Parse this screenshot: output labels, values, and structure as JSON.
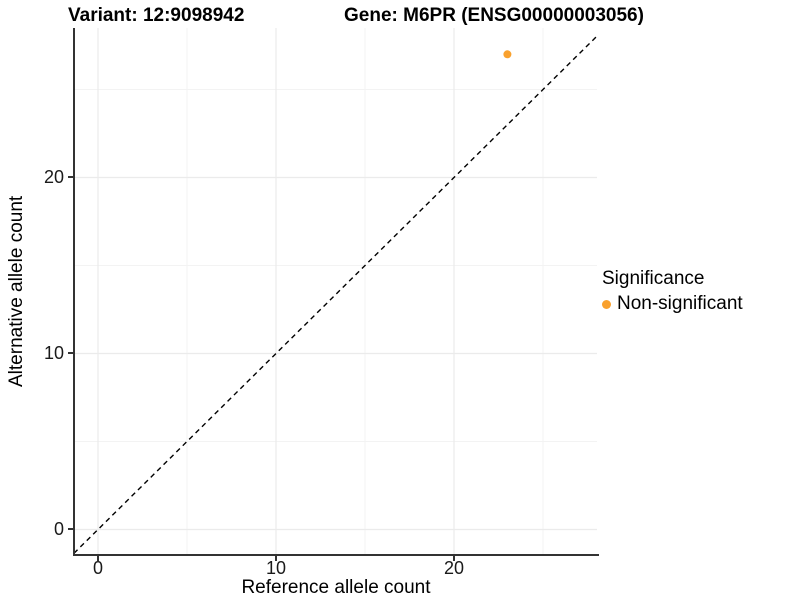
{
  "titles": {
    "variant": "Variant: 12:9098942",
    "gene": "Gene: M6PR (ENSG00000003056)"
  },
  "axes": {
    "x": {
      "label": "Reference allele count",
      "tick_labels": [
        "0",
        "10",
        "20"
      ]
    },
    "y": {
      "label": "Alternative allele count",
      "tick_labels": [
        "0",
        "10",
        "20"
      ]
    }
  },
  "legend": {
    "title": "Significance",
    "items": [
      {
        "label": "Non-significant",
        "color": "#F9A12E",
        "marker": "circle"
      }
    ]
  },
  "colors": {
    "point": "#F9A12E",
    "axis_line": "#333333",
    "grid_major": "#EBEBEB",
    "grid_minor": "#F3F3F3",
    "dashed_line": "#000000",
    "text": "#000000"
  },
  "chart_data": {
    "type": "scatter",
    "title": "Variant: 12:9098942 | Gene: M6PR (ENSG00000003056)",
    "xlabel": "Reference allele count",
    "ylabel": "Alternative allele count",
    "xlim": [
      0,
      27
    ],
    "ylim": [
      0,
      27
    ],
    "x_ticks": [
      0,
      10,
      20
    ],
    "y_ticks": [
      0,
      10,
      20
    ],
    "x_minor_ticks": [
      5,
      15,
      25
    ],
    "y_minor_ticks": [
      5,
      15,
      25
    ],
    "grid": "on",
    "legend_position": "right",
    "series": [
      {
        "name": "Non-significant",
        "color": "#F9A12E",
        "marker": "circle",
        "points": [
          {
            "x": 23,
            "y": 27
          }
        ]
      }
    ],
    "reference_line": {
      "type": "identity y = x",
      "style": "dashed",
      "color": "#000000"
    }
  }
}
